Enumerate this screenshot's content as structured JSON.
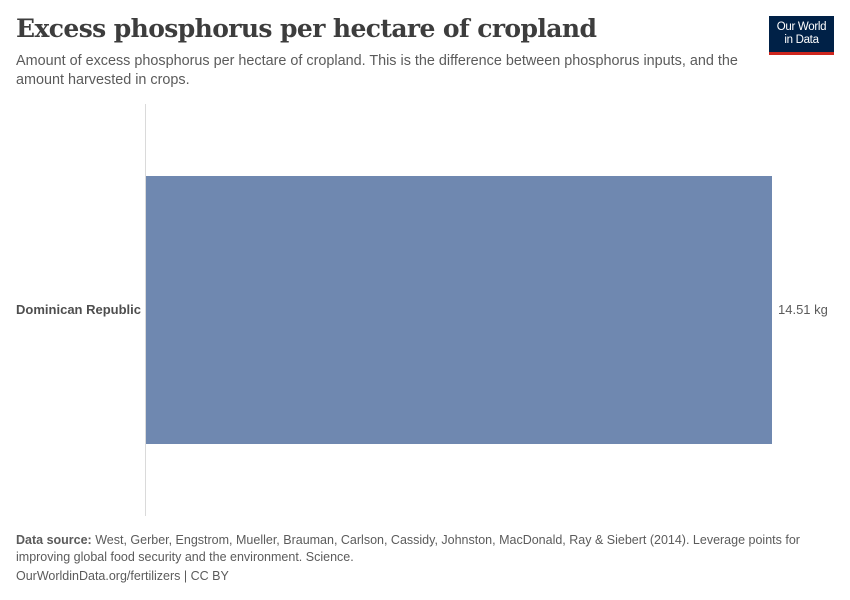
{
  "header": {
    "title": "Excess phosphorus per hectare of cropland",
    "subtitle": "Amount of excess phosphorus per hectare of cropland. This is the difference between phosphorus inputs, and the amount harvested in crops.",
    "logo_line1": "Our World",
    "logo_line2": "in Data"
  },
  "chart": {
    "bar_color": "#6f88b0",
    "axis_color": "#dadada",
    "rows": [
      {
        "entity": "Dominican Republic",
        "value": 14.51,
        "value_label": "14.51 kg"
      }
    ]
  },
  "footer": {
    "source_label": "Data source:",
    "source_text": " West, Gerber, Engstrom, Mueller, Brauman, Carlson, Cassidy, Johnston, MacDonald, Ray & Siebert (2014). Leverage points for improving global food security and the environment. Science.",
    "link_text": "OurWorldinData.org/fertilizers",
    "separator": " | ",
    "license": "CC BY"
  },
  "chart_data": {
    "type": "bar",
    "orientation": "horizontal",
    "title": "Excess phosphorus per hectare of cropland",
    "subtitle": "Amount of excess phosphorus per hectare of cropland. This is the difference between phosphorus inputs, and the amount harvested in crops.",
    "categories": [
      "Dominican Republic"
    ],
    "values": [
      14.51
    ],
    "unit": "kg",
    "data_labels": [
      "14.51 kg"
    ],
    "xlabel": "",
    "ylabel": "",
    "xlim": [
      0,
      14.51
    ],
    "grid": false,
    "legend": null,
    "colors": [
      "#6f88b0"
    ]
  }
}
